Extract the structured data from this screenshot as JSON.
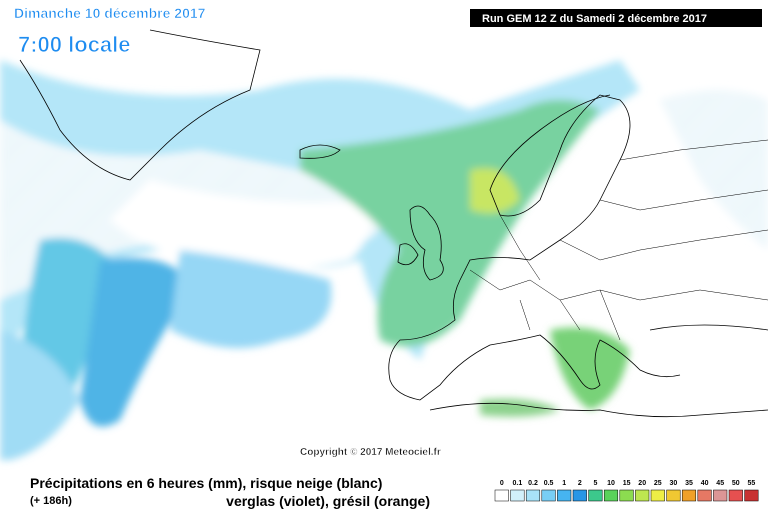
{
  "header": {
    "date": "Dimanche 10 décembre 2017",
    "time": "7:00 locale",
    "run": "Run GEM 12 Z du Samedi 2 décembre 2017"
  },
  "copyright": "Copyright © 2017 Meteociel.fr",
  "footer": {
    "title": "Précipitations en 6 heures (mm), risque neige (blanc)",
    "lead": "(+ 186h)",
    "subtitle": "verglas (violet), grésil (orange)"
  },
  "legend": {
    "labels": [
      0,
      0.1,
      0.2,
      0.5,
      1,
      2,
      5,
      10,
      15,
      20,
      25,
      30,
      35,
      40,
      45,
      50,
      55
    ],
    "colors": [
      "#ffffff",
      "#d2f0fa",
      "#a8e2f8",
      "#78cef5",
      "#46b4f0",
      "#2896e6",
      "#3cc88c",
      "#5ad25a",
      "#8cdc50",
      "#bee650",
      "#eeee46",
      "#f0c832",
      "#f0a028",
      "#e67864",
      "#dc9696",
      "#e65050",
      "#c83232"
    ]
  }
}
